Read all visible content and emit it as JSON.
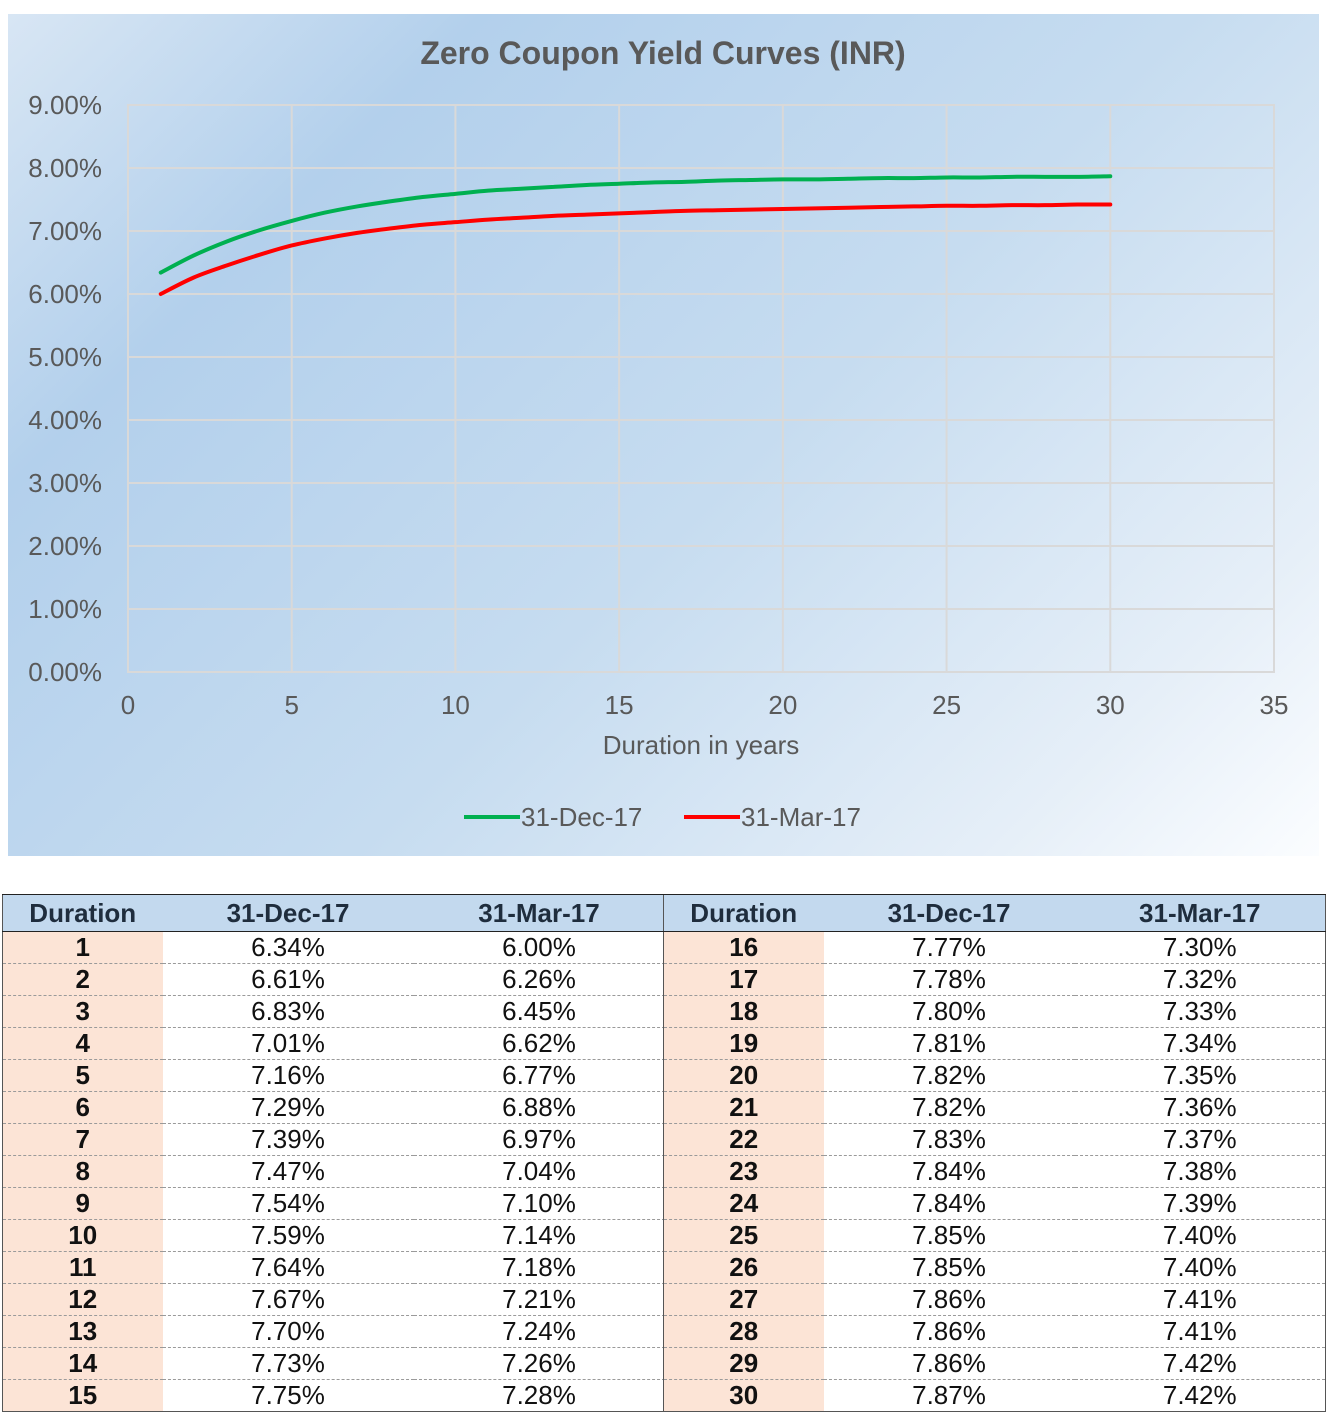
{
  "chart_data": {
    "type": "line",
    "title": "Zero Coupon Yield Curves (INR)",
    "xlabel": "Duration in years",
    "ylabel": "",
    "xlim": [
      0,
      35
    ],
    "ylim": [
      0,
      0.09
    ],
    "x_ticks": [
      "0",
      "5",
      "10",
      "15",
      "20",
      "25",
      "30",
      "35"
    ],
    "y_ticks": [
      "0.00%",
      "1.00%",
      "2.00%",
      "3.00%",
      "4.00%",
      "5.00%",
      "6.00%",
      "7.00%",
      "8.00%",
      "9.00%"
    ],
    "grid": true,
    "legend_position": "bottom",
    "x": [
      1,
      2,
      3,
      4,
      5,
      6,
      7,
      8,
      9,
      10,
      11,
      12,
      13,
      14,
      15,
      16,
      17,
      18,
      19,
      20,
      21,
      22,
      23,
      24,
      25,
      26,
      27,
      28,
      29,
      30
    ],
    "series": [
      {
        "name": "31-Dec-17",
        "color": "#00b050",
        "values": [
          6.34,
          6.61,
          6.83,
          7.01,
          7.16,
          7.29,
          7.39,
          7.47,
          7.54,
          7.59,
          7.64,
          7.67,
          7.7,
          7.73,
          7.75,
          7.77,
          7.78,
          7.8,
          7.81,
          7.82,
          7.82,
          7.83,
          7.84,
          7.84,
          7.85,
          7.85,
          7.86,
          7.86,
          7.86,
          7.87
        ]
      },
      {
        "name": "31-Mar-17",
        "color": "#ff0000",
        "values": [
          6.0,
          6.26,
          6.45,
          6.62,
          6.77,
          6.88,
          6.97,
          7.04,
          7.1,
          7.14,
          7.18,
          7.21,
          7.24,
          7.26,
          7.28,
          7.3,
          7.32,
          7.33,
          7.34,
          7.35,
          7.36,
          7.37,
          7.38,
          7.39,
          7.4,
          7.4,
          7.41,
          7.41,
          7.42,
          7.42
        ]
      }
    ]
  },
  "table": {
    "headers": [
      "Duration",
      "31-Dec-17",
      "31-Mar-17"
    ],
    "rows": [
      [
        "1",
        "6.34%",
        "6.00%"
      ],
      [
        "2",
        "6.61%",
        "6.26%"
      ],
      [
        "3",
        "6.83%",
        "6.45%"
      ],
      [
        "4",
        "7.01%",
        "6.62%"
      ],
      [
        "5",
        "7.16%",
        "6.77%"
      ],
      [
        "6",
        "7.29%",
        "6.88%"
      ],
      [
        "7",
        "7.39%",
        "6.97%"
      ],
      [
        "8",
        "7.47%",
        "7.04%"
      ],
      [
        "9",
        "7.54%",
        "7.10%"
      ],
      [
        "10",
        "7.59%",
        "7.14%"
      ],
      [
        "11",
        "7.64%",
        "7.18%"
      ],
      [
        "12",
        "7.67%",
        "7.21%"
      ],
      [
        "13",
        "7.70%",
        "7.24%"
      ],
      [
        "14",
        "7.73%",
        "7.26%"
      ],
      [
        "15",
        "7.75%",
        "7.28%"
      ],
      [
        "16",
        "7.77%",
        "7.30%"
      ],
      [
        "17",
        "7.78%",
        "7.32%"
      ],
      [
        "18",
        "7.80%",
        "7.33%"
      ],
      [
        "19",
        "7.81%",
        "7.34%"
      ],
      [
        "20",
        "7.82%",
        "7.35%"
      ],
      [
        "21",
        "7.82%",
        "7.36%"
      ],
      [
        "22",
        "7.83%",
        "7.37%"
      ],
      [
        "23",
        "7.84%",
        "7.38%"
      ],
      [
        "24",
        "7.84%",
        "7.39%"
      ],
      [
        "25",
        "7.85%",
        "7.40%"
      ],
      [
        "26",
        "7.85%",
        "7.40%"
      ],
      [
        "27",
        "7.86%",
        "7.41%"
      ],
      [
        "28",
        "7.86%",
        "7.41%"
      ],
      [
        "29",
        "7.86%",
        "7.42%"
      ],
      [
        "30",
        "7.87%",
        "7.42%"
      ]
    ]
  }
}
